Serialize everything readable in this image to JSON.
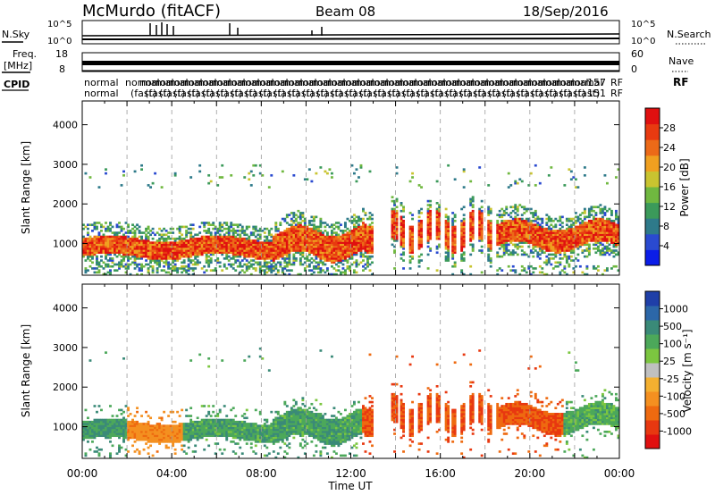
{
  "header": {
    "station": "McMurdo (fitACF)",
    "beam": "Beam 08",
    "date": "18/Sep/2016"
  },
  "panels": {
    "noise": {
      "left_label": "N.Sky",
      "right_label": "N.Search",
      "left_ticks": [
        "10^5",
        "10^0"
      ],
      "right_ticks": [
        "10^5",
        "10^0"
      ]
    },
    "freq": {
      "left_label_1": "Freq.",
      "left_label_2": "[MHz]",
      "right_label": "Nave",
      "left_ticks": [
        "18",
        "8"
      ],
      "right_ticks": [
        "60",
        "0"
      ]
    },
    "cpid": {
      "label": "CPID",
      "right_values": [
        "157",
        "151"
      ],
      "right_suffix": [
        "RF",
        "RF"
      ],
      "modes": [
        "normal",
        "(fast)"
      ]
    }
  },
  "chart_data": [
    {
      "type": "heatmap",
      "name": "power",
      "ylabel": "Slant Range [km]",
      "xlabel": "",
      "x_ticks": [
        "00:00",
        "04:00",
        "08:00",
        "12:00",
        "16:00",
        "20:00",
        "00:00"
      ],
      "y_ticks": [
        1000,
        2000,
        3000,
        4000
      ],
      "ylim": [
        200,
        4600
      ],
      "xlim_hours": [
        0,
        24
      ],
      "colorbar": {
        "label": "Power [dB]",
        "ticks": [
          4,
          8,
          12,
          16,
          20,
          24,
          28
        ],
        "range": [
          0,
          32
        ],
        "colors": [
          "#0b1de8",
          "#2a4ad0",
          "#2e7a8a",
          "#3b9a5a",
          "#70b840",
          "#c9c430",
          "#f0a020",
          "#ec6a18",
          "#e83a10",
          "#e01010"
        ]
      }
    },
    {
      "type": "heatmap",
      "name": "velocity",
      "ylabel": "Slant Range [km]",
      "xlabel": "Time UT",
      "x_ticks": [
        "00:00",
        "04:00",
        "08:00",
        "12:00",
        "16:00",
        "20:00",
        "00:00"
      ],
      "y_ticks": [
        1000,
        2000,
        3000,
        4000
      ],
      "ylim": [
        200,
        4600
      ],
      "xlim_hours": [
        0,
        24
      ],
      "colorbar": {
        "label": "Velocity [m s⁻¹]",
        "ticks": [
          "1000",
          "500",
          "100",
          "25",
          "-25",
          "-100",
          "-500",
          "-1000"
        ],
        "colors": [
          "#1f3fa8",
          "#2c67a8",
          "#3a8a78",
          "#4ca85a",
          "#7cc640",
          "#c0c0c0",
          "#f4b030",
          "#f49020",
          "#ee6a10",
          "#e83810",
          "#e01010"
        ]
      }
    }
  ]
}
